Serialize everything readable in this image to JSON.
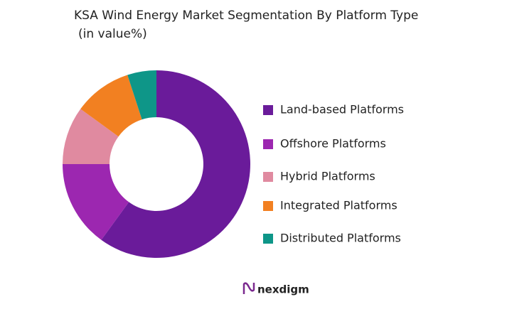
{
  "chart_data": {
    "type": "donut",
    "title": "KSA Wind Energy  Market Segmentation By Platform Type",
    "subtitle": "(in value%)",
    "categories": [
      "Land-based Platforms",
      "Offshore Platforms",
      "Hybrid Platforms",
      "Integrated Platforms",
      "Distributed Platforms"
    ],
    "values": [
      60,
      15,
      10,
      10,
      5
    ],
    "colors": [
      "#6a1b9a",
      "#9c27b0",
      "#e08aa0",
      "#f28021",
      "#0e9688"
    ],
    "legend": "right"
  },
  "brand": "nexdigm"
}
